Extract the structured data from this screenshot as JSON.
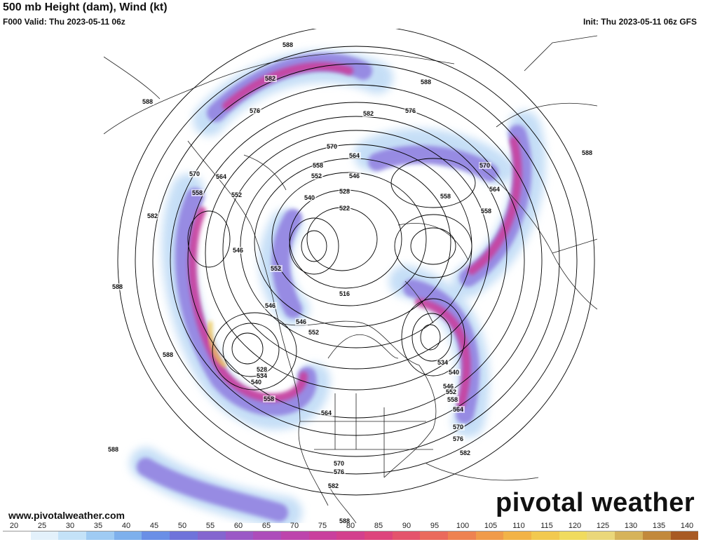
{
  "header": {
    "title": "500 mb Height (dam), Wind (kt)",
    "valid": "F000 Valid: Thu 2023-05-11 06z",
    "init": "Init: Thu 2023-05-11 06z GFS"
  },
  "footer": {
    "website": "www.pivotalweather.com",
    "logo_text": "pivotal weather"
  },
  "colorbar": {
    "ticks": [
      "20",
      "25",
      "30",
      "35",
      "40",
      "45",
      "50",
      "55",
      "60",
      "65",
      "70",
      "75",
      "80",
      "85",
      "90",
      "95",
      "100",
      "105",
      "110",
      "115",
      "120",
      "125",
      "130",
      "135",
      "140"
    ],
    "colors": [
      "#ffffff",
      "#e3f1fb",
      "#c4e2f8",
      "#9fcbf3",
      "#7eb0ec",
      "#6a8fe6",
      "#6f73da",
      "#8466cf",
      "#9b59c6",
      "#ad4dba",
      "#bd45ac",
      "#c9409d",
      "#d3408d",
      "#dd457c",
      "#e4546c",
      "#ea6a5c",
      "#ee8251",
      "#f09b4a",
      "#f2b347",
      "#f2c94f",
      "#f0db5e",
      "#ead77a",
      "#d6b35a",
      "#c2893c",
      "#a85a24"
    ]
  },
  "map": {
    "contour_labels": [
      "588",
      "582",
      "576",
      "570",
      "564",
      "558",
      "552",
      "546",
      "540",
      "534",
      "528",
      "522",
      "516"
    ],
    "placed_labels": [
      {
        "text": "588",
        "id": "l1"
      },
      {
        "text": "582",
        "id": "l2"
      },
      {
        "text": "588",
        "id": "l3"
      },
      {
        "text": "576",
        "id": "l4"
      },
      {
        "text": "582",
        "id": "l5"
      },
      {
        "text": "576",
        "id": "l6"
      },
      {
        "text": "588",
        "id": "l7"
      },
      {
        "text": "570",
        "id": "l8"
      },
      {
        "text": "564",
        "id": "l9"
      },
      {
        "text": "558",
        "id": "l10"
      },
      {
        "text": "552",
        "id": "l11"
      },
      {
        "text": "546",
        "id": "l12"
      },
      {
        "text": "528",
        "id": "l13"
      },
      {
        "text": "540",
        "id": "l14"
      },
      {
        "text": "522",
        "id": "l15"
      },
      {
        "text": "558",
        "id": "l16"
      },
      {
        "text": "570",
        "id": "l17"
      },
      {
        "text": "564",
        "id": "l18"
      },
      {
        "text": "558",
        "id": "l19"
      },
      {
        "text": "588",
        "id": "l20"
      },
      {
        "text": "570",
        "id": "l21"
      },
      {
        "text": "558",
        "id": "l22"
      },
      {
        "text": "564",
        "id": "l23"
      },
      {
        "text": "552",
        "id": "l24"
      },
      {
        "text": "582",
        "id": "l25"
      },
      {
        "text": "546",
        "id": "l26"
      },
      {
        "text": "552",
        "id": "l27"
      },
      {
        "text": "588",
        "id": "l28"
      },
      {
        "text": "516",
        "id": "l29"
      },
      {
        "text": "546",
        "id": "l30"
      },
      {
        "text": "546",
        "id": "l31"
      },
      {
        "text": "552",
        "id": "l32"
      },
      {
        "text": "588",
        "id": "l33"
      },
      {
        "text": "528",
        "id": "l34"
      },
      {
        "text": "534",
        "id": "l35"
      },
      {
        "text": "540",
        "id": "l36"
      },
      {
        "text": "558",
        "id": "l37"
      },
      {
        "text": "534",
        "id": "l38"
      },
      {
        "text": "540",
        "id": "l39"
      },
      {
        "text": "546",
        "id": "l40"
      },
      {
        "text": "552",
        "id": "l41"
      },
      {
        "text": "558",
        "id": "l42"
      },
      {
        "text": "564",
        "id": "l43"
      },
      {
        "text": "564",
        "id": "l44"
      },
      {
        "text": "570",
        "id": "l45"
      },
      {
        "text": "576",
        "id": "l46"
      },
      {
        "text": "582",
        "id": "l47"
      },
      {
        "text": "588",
        "id": "l48"
      },
      {
        "text": "570",
        "id": "l49"
      },
      {
        "text": "576",
        "id": "l50"
      },
      {
        "text": "582",
        "id": "l51"
      },
      {
        "text": "588",
        "id": "l52"
      }
    ]
  }
}
